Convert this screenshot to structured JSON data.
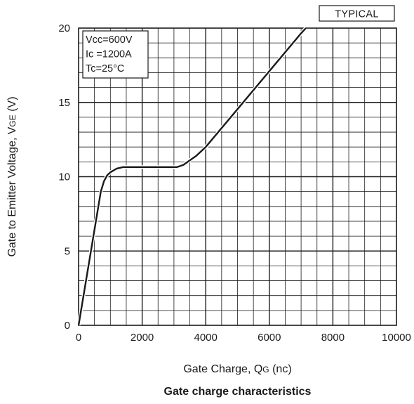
{
  "chart_data": {
    "type": "line",
    "title": "Gate charge characteristics",
    "badge": "TYPICAL",
    "xlabel": {
      "main": "Gate Charge, Q",
      "sub": "G",
      "unit": " (nc)"
    },
    "ylabel": {
      "main": "Gate to Emitter Voltage, V",
      "sub": "GE",
      "unit": " (V)"
    },
    "xlim": [
      0,
      10000
    ],
    "ylim": [
      0,
      20
    ],
    "x_ticks": [
      0,
      2000,
      4000,
      6000,
      8000,
      10000
    ],
    "y_ticks": [
      0,
      5,
      10,
      15,
      20
    ],
    "grid": true,
    "conditions": [
      "Vcc=600V",
      "Ic =1200A",
      "Tc=25°C"
    ],
    "series": [
      {
        "x": [
          0,
          700,
          800,
          900,
          1000,
          1200,
          1400,
          2000,
          2600,
          3100,
          3300,
          3500,
          3700,
          3900,
          4000,
          5000,
          6000,
          7000,
          7150
        ],
        "y": [
          0,
          9.0,
          9.7,
          10.1,
          10.3,
          10.55,
          10.65,
          10.65,
          10.65,
          10.65,
          10.8,
          11.1,
          11.4,
          11.8,
          12.0,
          14.55,
          17.1,
          19.65,
          20
        ]
      }
    ]
  }
}
